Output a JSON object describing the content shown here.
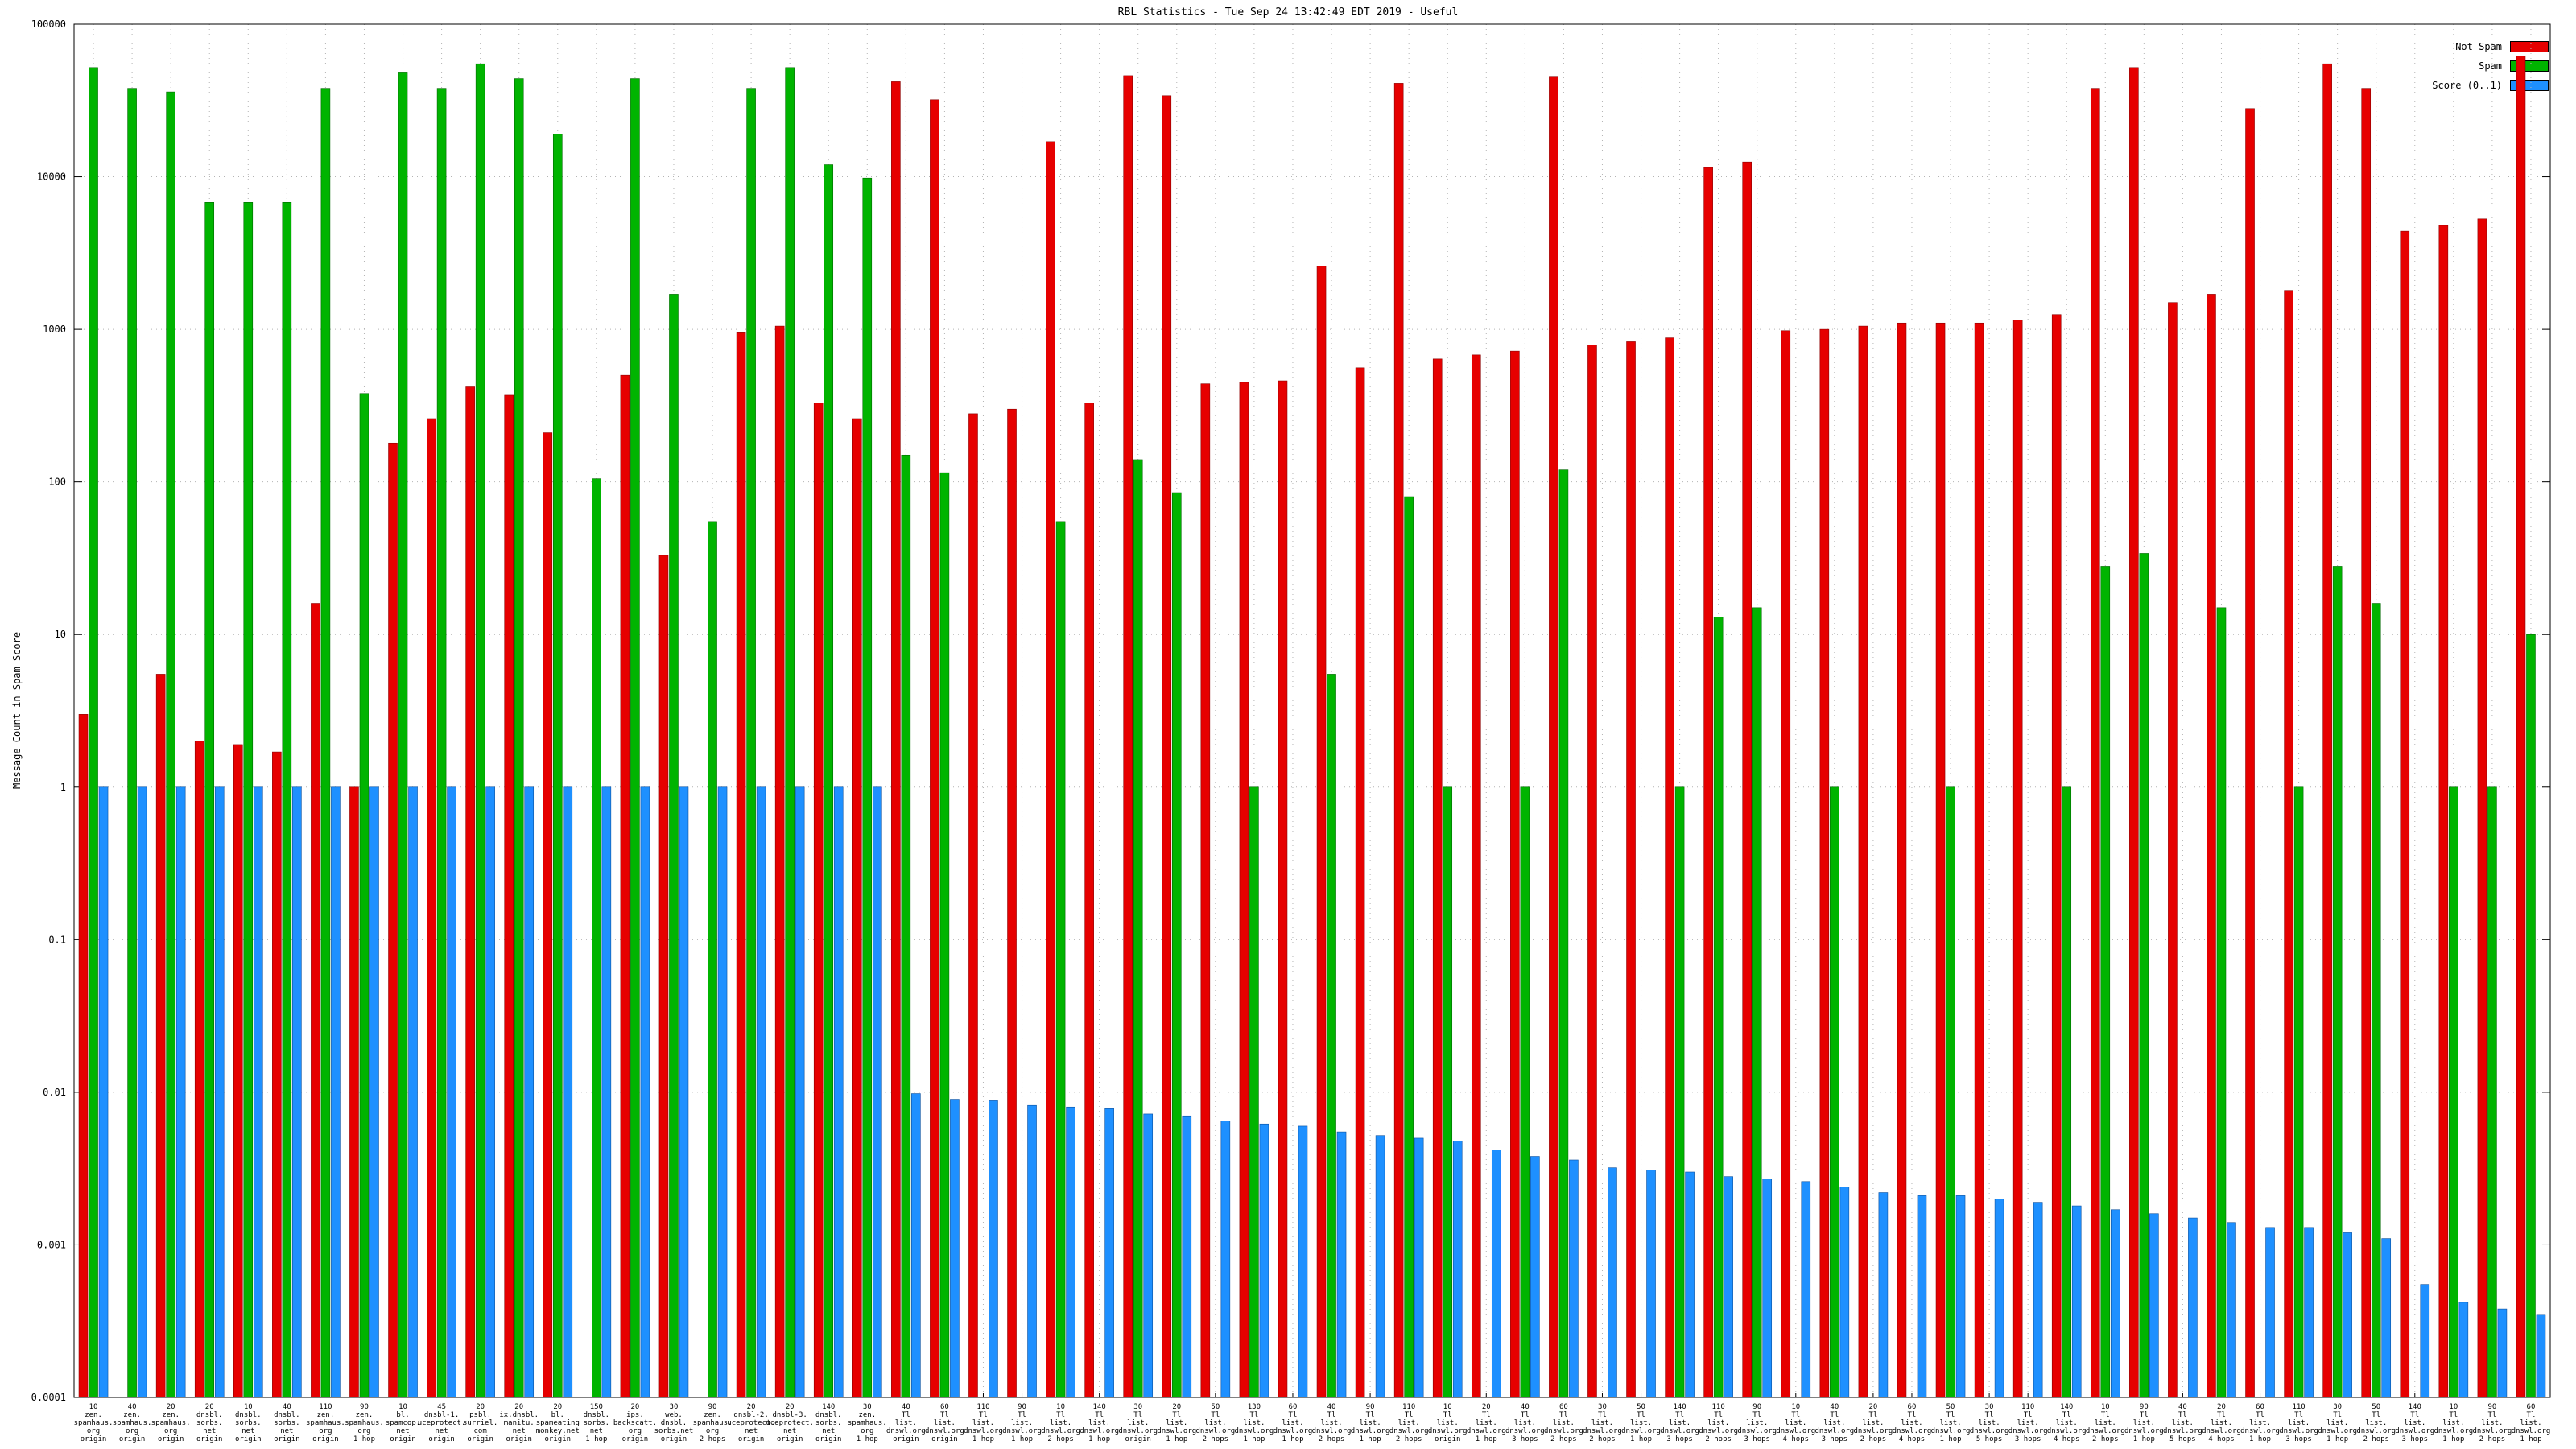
{
  "title": "RBL Statistics - Tue Sep 24 13:42:49 EDT 2019 - Useful",
  "colors": {
    "not_spam": "#e60000",
    "spam": "#00b400",
    "score": "#1e90ff",
    "grid": "#b4b4b4",
    "border": "#000000"
  },
  "legend": [
    {
      "label": "Not Spam",
      "color": "#e60000"
    },
    {
      "label": "Spam",
      "color": "#00b400"
    },
    {
      "label": "Score (0..1)",
      "color": "#1e90ff"
    }
  ],
  "chart_data": {
    "type": "bar",
    "yscale": "log",
    "grid": true,
    "legend_position": "top-right",
    "title": "RBL Statistics - Tue Sep 24 13:42:49 EDT 2019 - Useful",
    "xlabel": "",
    "ylabel": "Message Count in Spam Score",
    "ylim": [
      0.0001,
      100000
    ],
    "yticks": [
      "0.0001",
      "0.001",
      "0.01",
      "0.1",
      "1",
      "10",
      "100",
      "1000",
      "10000",
      "100000"
    ],
    "series": [
      "Not Spam",
      "Spam",
      "Score (0..1)"
    ],
    "groups": [
      {
        "label": [
          "10",
          "zen.",
          "spamhaus.",
          "org",
          "origin"
        ],
        "values": [
          3,
          52000,
          1
        ]
      },
      {
        "label": [
          "40",
          "zen.",
          "spamhaus.",
          "org",
          "origin"
        ],
        "values": [
          0,
          38000,
          1
        ]
      },
      {
        "label": [
          "20",
          "zen.",
          "spamhaus.",
          "org",
          "origin"
        ],
        "values": [
          5.5,
          36000,
          1
        ]
      },
      {
        "label": [
          "20",
          "dnsbl.",
          "sorbs.",
          "net",
          "origin"
        ],
        "values": [
          2,
          6800,
          1
        ]
      },
      {
        "label": [
          "10",
          "dnsbl.",
          "sorbs.",
          "net",
          "origin"
        ],
        "values": [
          1.9,
          6800,
          1
        ]
      },
      {
        "label": [
          "40",
          "dnsbl.",
          "sorbs.",
          "net",
          "origin"
        ],
        "values": [
          1.7,
          6800,
          1
        ]
      },
      {
        "label": [
          "110",
          "zen.",
          "spamhaus.",
          "org",
          "origin"
        ],
        "values": [
          16,
          38000,
          1
        ]
      },
      {
        "label": [
          "90",
          "zen.",
          "spamhaus.",
          "org",
          "1 hop"
        ],
        "values": [
          1,
          380,
          1
        ]
      },
      {
        "label": [
          "10",
          "bl.",
          "spamcop.",
          "net",
          "origin"
        ],
        "values": [
          180,
          48000,
          1
        ]
      },
      {
        "label": [
          "45",
          "dnsbl-1.",
          "uceprotect.",
          "net",
          "origin"
        ],
        "values": [
          260,
          38000,
          1
        ]
      },
      {
        "label": [
          "20",
          "psbl.",
          "surriel.",
          "com",
          "origin"
        ],
        "values": [
          420,
          55000,
          1
        ]
      },
      {
        "label": [
          "20",
          "ix.dnsbl.",
          "manitu.",
          "net",
          "origin"
        ],
        "values": [
          370,
          44000,
          1
        ]
      },
      {
        "label": [
          "20",
          "bl.",
          "spameating",
          "monkey.net",
          "origin"
        ],
        "values": [
          210,
          19000,
          1
        ]
      },
      {
        "label": [
          "150",
          "dnsbl.",
          "sorbs.",
          "net",
          "1 hop"
        ],
        "values": [
          0,
          105,
          1
        ]
      },
      {
        "label": [
          "20",
          "ips.",
          "backscatt.",
          "org",
          "origin"
        ],
        "values": [
          500,
          44000,
          1
        ]
      },
      {
        "label": [
          "30",
          "web.",
          "dnsbl.",
          "sorbs.net",
          "origin"
        ],
        "values": [
          33,
          1700,
          1
        ]
      },
      {
        "label": [
          "90",
          "zen.",
          "spamhaus.",
          "org",
          "2 hops"
        ],
        "values": [
          0,
          55,
          1
        ]
      },
      {
        "label": [
          "20",
          "dnsbl-2.",
          "uceprotect.",
          "net",
          "origin"
        ],
        "values": [
          950,
          38000,
          1
        ]
      },
      {
        "label": [
          "20",
          "dnsbl-3.",
          "uceprotect.",
          "net",
          "origin"
        ],
        "values": [
          1050,
          52000,
          1
        ]
      },
      {
        "label": [
          "140",
          "dnsbl.",
          "sorbs.",
          "net",
          "origin"
        ],
        "values": [
          330,
          12000,
          1
        ]
      },
      {
        "label": [
          "30",
          "zen.",
          "spamhaus.",
          "org",
          "1 hop"
        ],
        "values": [
          260,
          9800,
          1
        ]
      },
      {
        "label": [
          "40",
          "Tl",
          "list.",
          "dnswl.org",
          "origin"
        ],
        "values": [
          42000,
          150,
          0.0098
        ]
      },
      {
        "label": [
          "60",
          "Tl",
          "list.",
          "dnswl.org",
          "origin"
        ],
        "values": [
          32000,
          115,
          0.009
        ]
      },
      {
        "label": [
          "110",
          "Tl",
          "list.",
          "dnswl.org",
          "1 hop"
        ],
        "values": [
          280,
          0,
          0.0088
        ]
      },
      {
        "label": [
          "90",
          "Tl",
          "list.",
          "dnswl.org",
          "1 hop"
        ],
        "values": [
          300,
          0,
          0.0082
        ]
      },
      {
        "label": [
          "10",
          "Tl",
          "list.",
          "dnswl.org",
          "2 hops"
        ],
        "values": [
          17000,
          55,
          0.008
        ]
      },
      {
        "label": [
          "140",
          "Tl",
          "list.",
          "dnswl.org",
          "1 hop"
        ],
        "values": [
          330,
          0,
          0.0078
        ]
      },
      {
        "label": [
          "30",
          "Tl",
          "list.",
          "dnswl.org",
          "origin"
        ],
        "values": [
          46000,
          140,
          0.0072
        ]
      },
      {
        "label": [
          "20",
          "Tl",
          "list.",
          "dnswl.org",
          "1 hop"
        ],
        "values": [
          34000,
          85,
          0.007
        ]
      },
      {
        "label": [
          "50",
          "Tl",
          "list.",
          "dnswl.org",
          "2 hops"
        ],
        "values": [
          440,
          0,
          0.0065
        ]
      },
      {
        "label": [
          "130",
          "Tl",
          "list.",
          "dnswl.org",
          "1 hop"
        ],
        "values": [
          450,
          1,
          0.0062
        ]
      },
      {
        "label": [
          "60",
          "Tl",
          "list.",
          "dnswl.org",
          "1 hop"
        ],
        "values": [
          460,
          0,
          0.006
        ]
      },
      {
        "label": [
          "40",
          "Tl",
          "list.",
          "dnswl.org",
          "2 hops"
        ],
        "values": [
          2600,
          5.5,
          0.0055
        ]
      },
      {
        "label": [
          "90",
          "Tl",
          "list.",
          "dnswl.org",
          "1 hop"
        ],
        "values": [
          560,
          0,
          0.0052
        ]
      },
      {
        "label": [
          "110",
          "Tl",
          "list.",
          "dnswl.org",
          "2 hops"
        ],
        "values": [
          41000,
          80,
          0.005
        ]
      },
      {
        "label": [
          "10",
          "Tl",
          "list.",
          "dnswl.org",
          "origin"
        ],
        "values": [
          640,
          1,
          0.0048
        ]
      },
      {
        "label": [
          "20",
          "Tl",
          "list.",
          "dnswl.org",
          "1 hop"
        ],
        "values": [
          680,
          0,
          0.0042
        ]
      },
      {
        "label": [
          "40",
          "Tl",
          "list.",
          "dnswl.org",
          "3 hops"
        ],
        "values": [
          720,
          1,
          0.0038
        ]
      },
      {
        "label": [
          "60",
          "Tl",
          "list.",
          "dnswl.org",
          "2 hops"
        ],
        "values": [
          45000,
          120,
          0.0036
        ]
      },
      {
        "label": [
          "30",
          "Tl",
          "list.",
          "dnswl.org",
          "2 hops"
        ],
        "values": [
          790,
          0,
          0.0032
        ]
      },
      {
        "label": [
          "50",
          "Tl",
          "list.",
          "dnswl.org",
          "1 hop"
        ],
        "values": [
          830,
          0,
          0.0031
        ]
      },
      {
        "label": [
          "140",
          "Tl",
          "list.",
          "dnswl.org",
          "3 hops"
        ],
        "values": [
          880,
          1,
          0.003
        ]
      },
      {
        "label": [
          "110",
          "Tl",
          "list.",
          "dnswl.org",
          "2 hops"
        ],
        "values": [
          11500,
          13,
          0.0028
        ]
      },
      {
        "label": [
          "90",
          "Tl",
          "list.",
          "dnswl.org",
          "3 hops"
        ],
        "values": [
          12500,
          15,
          0.0027
        ]
      },
      {
        "label": [
          "10",
          "Tl",
          "list.",
          "dnswl.org",
          "4 hops"
        ],
        "values": [
          980,
          0,
          0.0026
        ]
      },
      {
        "label": [
          "40",
          "Tl",
          "list.",
          "dnswl.org",
          "3 hops"
        ],
        "values": [
          1000,
          1,
          0.0024
        ]
      },
      {
        "label": [
          "20",
          "Tl",
          "list.",
          "dnswl.org",
          "2 hops"
        ],
        "values": [
          1050,
          0,
          0.0022
        ]
      },
      {
        "label": [
          "60",
          "Tl",
          "list.",
          "dnswl.org",
          "4 hops"
        ],
        "values": [
          1100,
          0,
          0.0021
        ]
      },
      {
        "label": [
          "50",
          "Tl",
          "list.",
          "dnswl.org",
          "1 hop"
        ],
        "values": [
          1100,
          1,
          0.0021
        ]
      },
      {
        "label": [
          "30",
          "Tl",
          "list.",
          "dnswl.org",
          "5 hops"
        ],
        "values": [
          1100,
          0,
          0.002
        ]
      },
      {
        "label": [
          "110",
          "Tl",
          "list.",
          "dnswl.org",
          "3 hops"
        ],
        "values": [
          1150,
          0,
          0.0019
        ]
      },
      {
        "label": [
          "140",
          "Tl",
          "list.",
          "dnswl.org",
          "4 hops"
        ],
        "values": [
          1250,
          1,
          0.0018
        ]
      },
      {
        "label": [
          "10",
          "Tl",
          "list.",
          "dnswl.org",
          "2 hops"
        ],
        "values": [
          38000,
          28,
          0.0017
        ]
      },
      {
        "label": [
          "90",
          "Tl",
          "list.",
          "dnswl.org",
          "1 hop"
        ],
        "values": [
          52000,
          34,
          0.0016
        ]
      },
      {
        "label": [
          "40",
          "Tl",
          "list.",
          "dnswl.org",
          "5 hops"
        ],
        "values": [
          1500,
          0,
          0.0015
        ]
      },
      {
        "label": [
          "20",
          "Tl",
          "list.",
          "dnswl.org",
          "4 hops"
        ],
        "values": [
          1700,
          15,
          0.0014
        ]
      },
      {
        "label": [
          "60",
          "Tl",
          "list.",
          "dnswl.org",
          "1 hop"
        ],
        "values": [
          28000,
          0,
          0.0013
        ]
      },
      {
        "label": [
          "110",
          "Tl",
          "list.",
          "dnswl.org",
          "3 hops"
        ],
        "values": [
          1800,
          1,
          0.0013
        ]
      },
      {
        "label": [
          "30",
          "Tl",
          "list.",
          "dnswl.org",
          "1 hop"
        ],
        "values": [
          55000,
          28,
          0.0012
        ]
      },
      {
        "label": [
          "50",
          "Tl",
          "list.",
          "dnswl.org",
          "2 hops"
        ],
        "values": [
          38000,
          16,
          0.0011
        ]
      },
      {
        "label": [
          "140",
          "Tl",
          "list.",
          "dnswl.org",
          "3 hops"
        ],
        "values": [
          4400,
          0,
          0.00055
        ]
      },
      {
        "label": [
          "10",
          "Tl",
          "list.",
          "dnswl.org",
          "1 hop"
        ],
        "values": [
          4800,
          1,
          0.00042
        ]
      },
      {
        "label": [
          "90",
          "Tl",
          "list.",
          "dnswl.org",
          "2 hops"
        ],
        "values": [
          5300,
          1,
          0.00038
        ]
      },
      {
        "label": [
          "60",
          "Tl",
          "list.",
          "dnswl.org",
          "1 hop"
        ],
        "values": [
          62000,
          10,
          0.00035
        ]
      }
    ]
  }
}
